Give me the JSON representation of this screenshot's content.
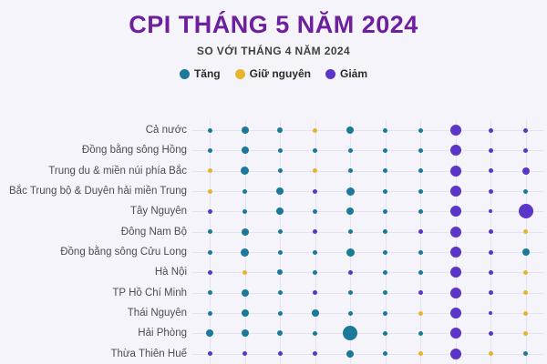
{
  "title": "CPI THÁNG 5 NĂM 2024",
  "subtitle": "SO VỚI THÁNG 4 NĂM 2024",
  "legend": {
    "items": [
      {
        "key": "t",
        "label": "Tăng"
      },
      {
        "key": "g",
        "label": "Giữ nguyên"
      },
      {
        "key": "d",
        "label": "Giảm"
      }
    ]
  },
  "colors": {
    "background": "#f6f4fb",
    "title": "#6d1f9e",
    "gridline": "#e6e3f0",
    "t": "#1b7a99",
    "g": "#e9b42d",
    "d": "#5a35c8"
  },
  "chart_data": {
    "type": "scatter",
    "subtype": "categorical-dot-matrix",
    "title": "CPI THÁNG 5 NĂM 2024",
    "subtitle": "SO VỚI THÁNG 4 NĂM 2024",
    "legend_entries": {
      "t": "Tăng",
      "g": "Giữ nguyên",
      "d": "Giảm"
    },
    "num_columns": 10,
    "column_labels_visible": false,
    "dot_encoding": "code = category letter (t=Tăng/teal, g=Giữ nguyên/yellow, d=Giảm/purple) + dot diameter in px",
    "rows": [
      {
        "name": "Cả nước",
        "dots": [
          "t5",
          "t8",
          "t6",
          "g5",
          "t8",
          "t5",
          "t5",
          "d12",
          "d5",
          "d5"
        ]
      },
      {
        "name": "Đồng bằng sông Hồng",
        "dots": [
          "t5",
          "t8",
          "t5",
          "t5",
          "t5",
          "t5",
          "t5",
          "d12",
          "d5",
          "d5"
        ]
      },
      {
        "name": "Trung du & miền núi phía Bắc",
        "dots": [
          "g5",
          "t9",
          "t5",
          "g5",
          "t5",
          "t5",
          "t5",
          "d12",
          "d5",
          "d8"
        ]
      },
      {
        "name": "Bắc Trung bộ & Duyên hải miền Trung",
        "dots": [
          "g5",
          "t5",
          "t8",
          "d5",
          "t9",
          "t5",
          "t5",
          "d12",
          "d5",
          "t5"
        ]
      },
      {
        "name": "Tây Nguyên",
        "dots": [
          "d5",
          "t5",
          "t8",
          "t5",
          "t8",
          "t5",
          "t5",
          "d12",
          "d4",
          "d16"
        ]
      },
      {
        "name": "Đông Nam Bộ",
        "dots": [
          "t5",
          "t8",
          "t5",
          "d5",
          "t5",
          "t5",
          "d5",
          "d12",
          "d5",
          "g5"
        ]
      },
      {
        "name": "Đồng bằng sông Cửu Long",
        "dots": [
          "t5",
          "t9",
          "t5",
          "t5",
          "t9",
          "t5",
          "t5",
          "d12",
          "d5",
          "t8"
        ]
      },
      {
        "name": "Hà Nội",
        "dots": [
          "d5",
          "g5",
          "t6",
          "t5",
          "d5",
          "t5",
          "t5",
          "d12",
          "d5",
          "g5"
        ]
      },
      {
        "name": "TP Hồ Chí Minh",
        "dots": [
          "t5",
          "t8",
          "t5",
          "d5",
          "t5",
          "t5",
          "d5",
          "d12",
          "d5",
          "g5"
        ]
      },
      {
        "name": "Thái Nguyên",
        "dots": [
          "t5",
          "t8",
          "t5",
          "t8",
          "t5",
          "t5",
          "g5",
          "d12",
          "d4",
          "g5"
        ]
      },
      {
        "name": "Hải Phòng",
        "dots": [
          "t8",
          "t8",
          "t6",
          "t5",
          "t16",
          "t5",
          "t5",
          "d12",
          "d5",
          "g5"
        ]
      },
      {
        "name": "Thừa Thiên Huế",
        "dots": [
          "d5",
          "d5",
          "d5",
          "d5",
          "t8",
          "t5",
          "g5",
          "d12",
          "g5",
          "t5"
        ]
      }
    ]
  }
}
